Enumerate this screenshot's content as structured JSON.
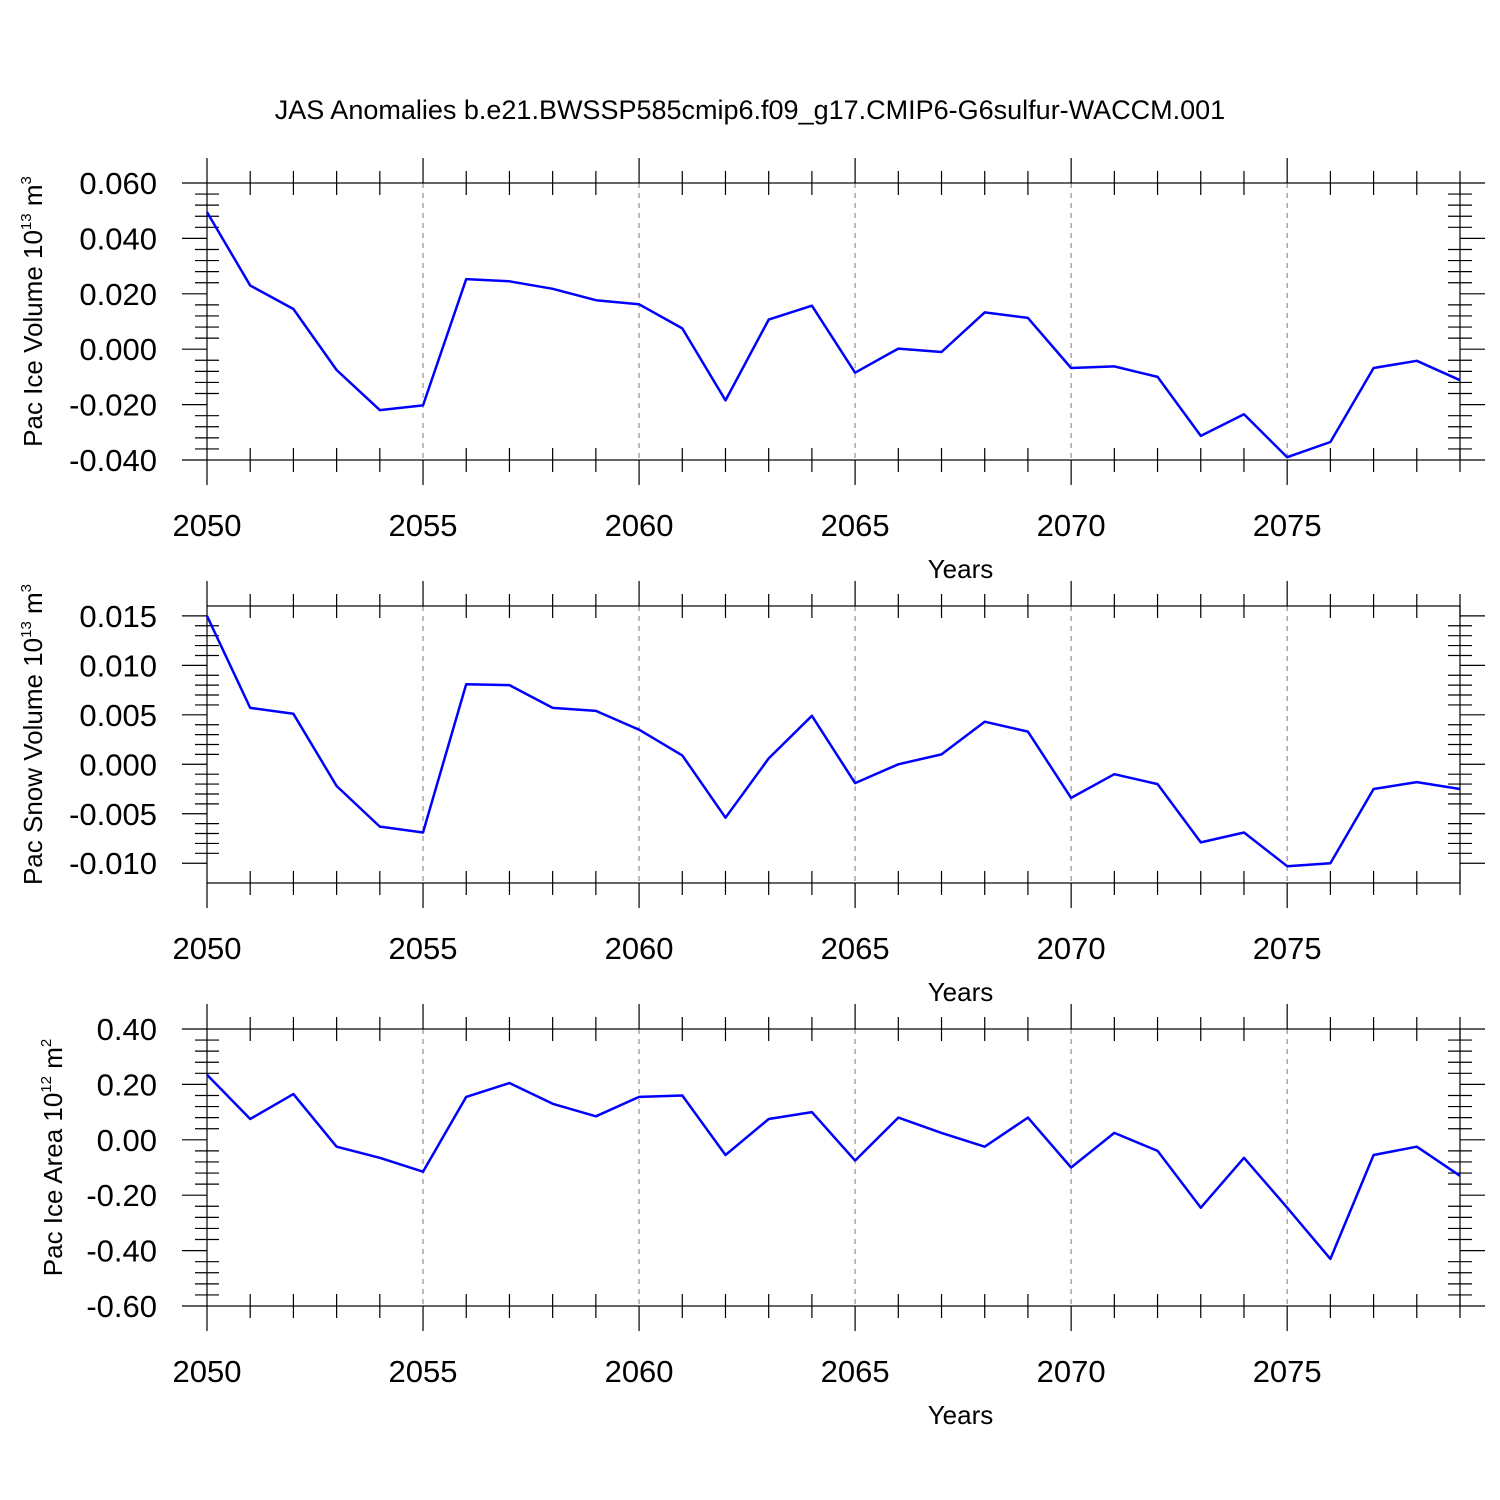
{
  "chart_data": {
    "title": "JAS Anomalies b.e21.BWSSP585cmip6.f09_g17.CMIP6-G6sulfur-WACCM.001",
    "panels": [
      {
        "type": "line",
        "title": "JAS Anomalies b.e21.BWSSP585cmip6.f09_g17.CMIP6-G6sulfur-WACCM.001",
        "xlabel": "Years",
        "ylabel": {
          "main": "Pac Ice Volume 10",
          "sup": "13",
          "tail": " m",
          "tail_sup": "3"
        },
        "xlim": [
          2050,
          2079
        ],
        "ylim": [
          -0.04,
          0.06
        ],
        "grid": "dashed vertical at major x ticks",
        "x_ticks": [
          2050,
          2055,
          2060,
          2065,
          2070,
          2075
        ],
        "y_ticks": [
          -0.04,
          -0.02,
          0.0,
          0.02,
          0.04,
          0.06
        ],
        "y_tick_labels": [
          "-0.040",
          "-0.020",
          "0.000",
          "0.020",
          "0.040",
          "0.060"
        ],
        "series": [
          {
            "name": "Pac Ice Volume",
            "color": "#0000ff",
            "x": [
              2050,
              2051,
              2052,
              2053,
              2054,
              2055,
              2056,
              2057,
              2058,
              2059,
              2060,
              2061,
              2062,
              2063,
              2064,
              2065,
              2066,
              2067,
              2068,
              2069,
              2070,
              2071,
              2072,
              2073,
              2074,
              2075,
              2076,
              2077,
              2078,
              2079
            ],
            "values": [
              0.0495,
              0.023,
              0.0145,
              -0.0075,
              -0.022,
              -0.0203,
              0.0253,
              0.0245,
              0.0218,
              0.0177,
              0.0162,
              0.0075,
              -0.0185,
              0.0107,
              0.0157,
              -0.0085,
              0.0002,
              -0.001,
              0.0133,
              0.0113,
              -0.0068,
              -0.0062,
              -0.01,
              -0.0313,
              -0.0235,
              -0.039,
              -0.0335,
              -0.0068,
              -0.0042,
              -0.0112
            ]
          }
        ]
      },
      {
        "type": "line",
        "title": "",
        "xlabel": "Years",
        "ylabel": {
          "main": "Pac Snow Volume 10",
          "sup": "13",
          "tail": " m",
          "tail_sup": "3"
        },
        "xlim": [
          2050,
          2079
        ],
        "ylim": [
          -0.012,
          0.016
        ],
        "grid": "dashed vertical at major x ticks",
        "x_ticks": [
          2050,
          2055,
          2060,
          2065,
          2070,
          2075
        ],
        "y_ticks": [
          -0.01,
          -0.005,
          0.0,
          0.005,
          0.01,
          0.015
        ],
        "y_tick_labels": [
          "-0.010",
          "-0.005",
          "0.000",
          "0.005",
          "0.010",
          "0.015"
        ],
        "series": [
          {
            "name": "Pac Snow Volume",
            "color": "#0000ff",
            "x": [
              2050,
              2051,
              2052,
              2053,
              2054,
              2055,
              2056,
              2057,
              2058,
              2059,
              2060,
              2061,
              2062,
              2063,
              2064,
              2065,
              2066,
              2067,
              2068,
              2069,
              2070,
              2071,
              2072,
              2073,
              2074,
              2075,
              2076,
              2077,
              2078,
              2079
            ],
            "values": [
              0.015,
              0.0057,
              0.0051,
              -0.0022,
              -0.0063,
              -0.0069,
              0.0081,
              0.008,
              0.0057,
              0.0054,
              0.0035,
              0.0009,
              -0.0054,
              0.0006,
              0.0049,
              -0.0019,
              0.0,
              0.001,
              0.0043,
              0.0033,
              -0.0034,
              -0.001,
              -0.002,
              -0.0079,
              -0.0069,
              -0.0103,
              -0.01,
              -0.0025,
              -0.0018,
              -0.0025
            ]
          }
        ]
      },
      {
        "type": "line",
        "title": "",
        "xlabel": "Years",
        "ylabel": {
          "main": "Pac Ice Area 10",
          "sup": "12",
          "tail": " m",
          "tail_sup": "2"
        },
        "xlim": [
          2050,
          2079
        ],
        "ylim": [
          -0.6,
          0.4
        ],
        "grid": "dashed vertical at major x ticks",
        "x_ticks": [
          2050,
          2055,
          2060,
          2065,
          2070,
          2075
        ],
        "y_ticks": [
          -0.6,
          -0.4,
          -0.2,
          0.0,
          0.2,
          0.4
        ],
        "y_tick_labels": [
          "-0.60",
          "-0.40",
          "-0.20",
          "0.00",
          "0.20",
          "0.40"
        ],
        "series": [
          {
            "name": "Pac Ice Area",
            "color": "#0000ff",
            "x": [
              2050,
              2051,
              2052,
              2053,
              2054,
              2055,
              2056,
              2057,
              2058,
              2059,
              2060,
              2061,
              2062,
              2063,
              2064,
              2065,
              2066,
              2067,
              2068,
              2069,
              2070,
              2071,
              2072,
              2073,
              2074,
              2075,
              2076,
              2077,
              2078,
              2079
            ],
            "values": [
              0.235,
              0.075,
              0.165,
              -0.025,
              -0.065,
              -0.115,
              0.155,
              0.205,
              0.13,
              0.085,
              0.155,
              0.16,
              -0.055,
              0.075,
              0.1,
              -0.075,
              0.08,
              0.025,
              -0.025,
              0.08,
              -0.1,
              0.025,
              -0.04,
              -0.245,
              -0.065,
              -0.245,
              -0.43,
              -0.055,
              -0.025,
              -0.13
            ]
          }
        ]
      }
    ]
  }
}
